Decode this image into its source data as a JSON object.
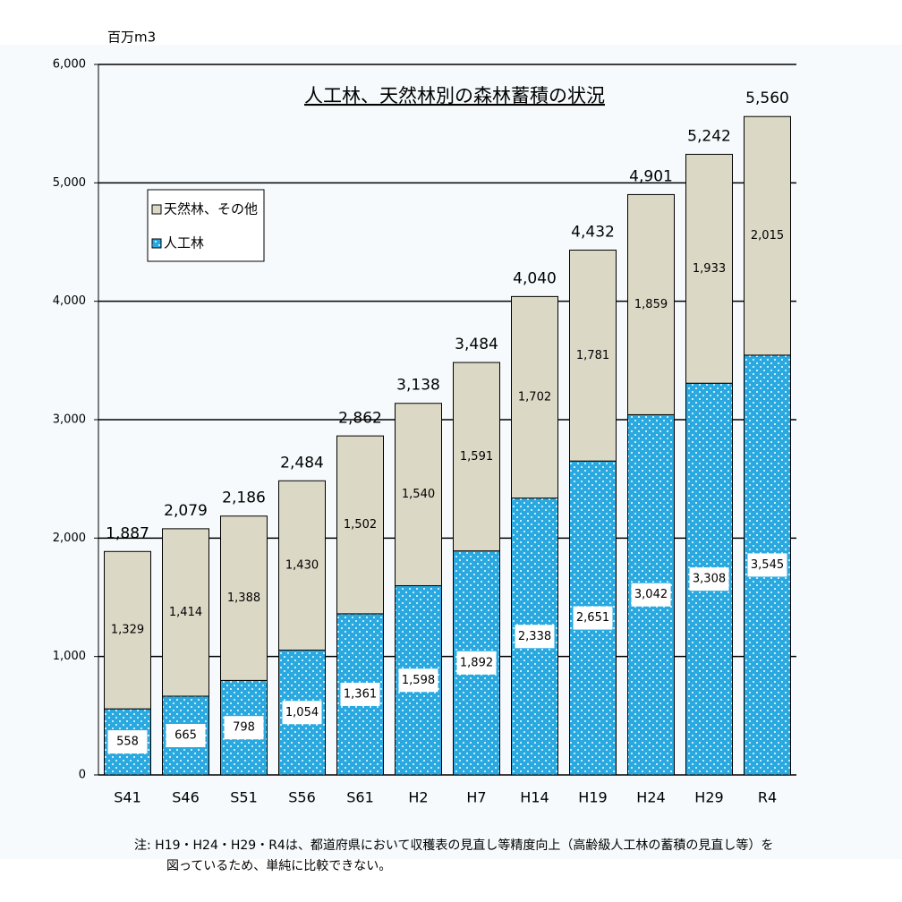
{
  "chart_data": {
    "type": "stacked_bar",
    "title": "人工林、天然林別の森林蓄積の状況",
    "y_label": "百万m3",
    "categories": [
      "S41",
      "S46",
      "S51",
      "S56",
      "S61",
      "H2",
      "H7",
      "H14",
      "H19",
      "H24",
      "H29",
      "R4"
    ],
    "series": [
      {
        "name": "人工林",
        "color": "#29a9e0",
        "values": [
          558,
          665,
          798,
          1054,
          1361,
          1598,
          1892,
          2338,
          2651,
          3042,
          3308,
          3545
        ],
        "value_labels": [
          "558",
          "665",
          "798",
          "1,054",
          "1,361",
          "1,598",
          "1,892",
          "2,338",
          "2,651",
          "3,042",
          "3,308",
          "3,545"
        ]
      },
      {
        "name": "天然林、その他",
        "color": "#dcd8c6",
        "values": [
          1329,
          1414,
          1388,
          1430,
          1502,
          1540,
          1591,
          1702,
          1781,
          1859,
          1933,
          2015
        ],
        "value_labels": [
          "1,329",
          "1,414",
          "1,388",
          "1,430",
          "1,502",
          "1,540",
          "1,591",
          "1,702",
          "1,781",
          "1,859",
          "1,933",
          "2,015"
        ]
      }
    ],
    "totals": [
      1887,
      2079,
      2186,
      2484,
      2862,
      3138,
      3484,
      4040,
      4432,
      4901,
      5242,
      5560
    ],
    "total_labels": [
      "1,887",
      "2,079",
      "2,186",
      "2,484",
      "2,862",
      "3,138",
      "3,484",
      "4,040",
      "4,432",
      "4,901",
      "5,242",
      "5,560"
    ],
    "ylim": [
      0,
      6000
    ],
    "yticks": [
      0,
      {
        "value": 1000,
        "label": "1,000"
      },
      {
        "value": 2000,
        "label": "2,000"
      },
      {
        "value": 3000,
        "label": "3,000"
      },
      {
        "value": 4000,
        "label": "4,000"
      },
      {
        "value": 5000,
        "label": "5,000"
      },
      {
        "value": 6000,
        "label": "6,000"
      }
    ],
    "grid": true,
    "note": [
      "注:  H19・H24・H29・R4は、都道府県において収穫表の見直し等精度向上（高齢級人工林の蓄積の見直し等）を",
      "図っているため、単純に比較できない。"
    ]
  }
}
